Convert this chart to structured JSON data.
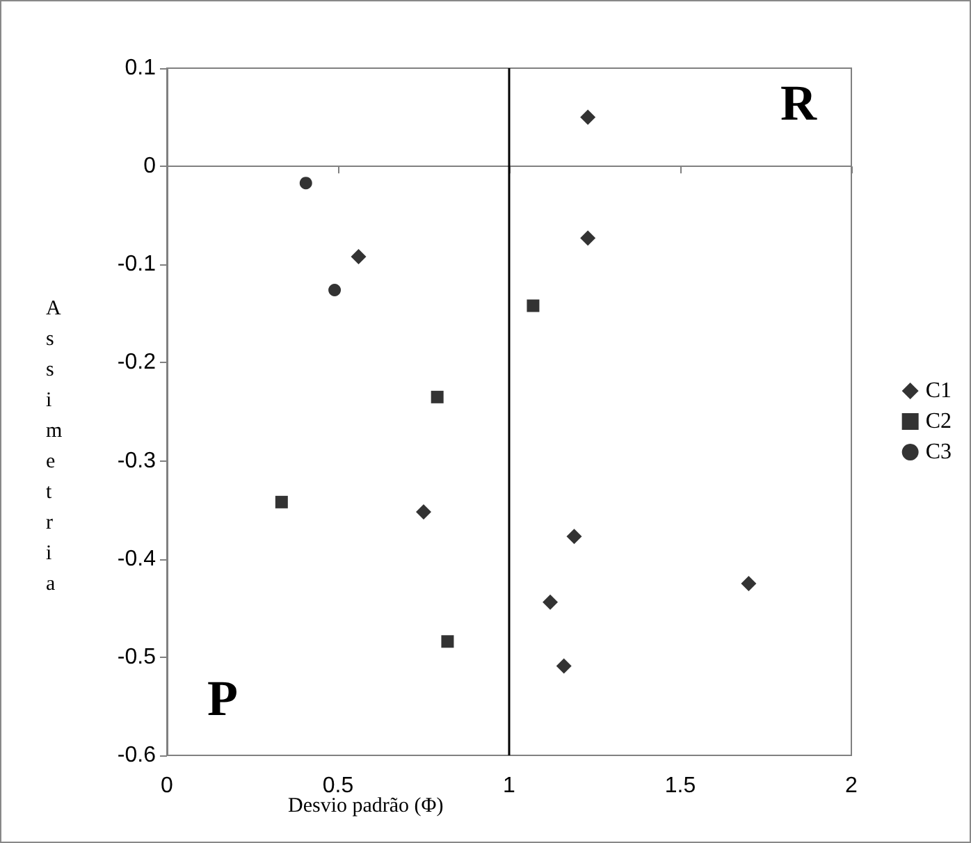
{
  "chart_data": {
    "type": "scatter",
    "xlabel": "Desvio padrão (Φ)",
    "ylabel": "Assimetria",
    "annotations": [
      "R",
      "P"
    ],
    "xlim": [
      0,
      2
    ],
    "xticks": [
      0,
      0.5,
      1,
      1.5,
      2
    ],
    "ylim": [
      -0.6,
      0.1
    ],
    "yticks": [
      -0.6,
      -0.5,
      -0.4,
      -0.3,
      -0.2,
      -0.1,
      0,
      0.1
    ],
    "grid": false,
    "legend": "right",
    "ref_lines": [
      {
        "axis": "x",
        "value": 1,
        "color": "#000000"
      }
    ],
    "series": [
      {
        "name": "C1",
        "color": "#000000",
        "marker": "diamond",
        "x": [
          1.23,
          1.23,
          0.56,
          0.75,
          1.19,
          1.7,
          1.12,
          1.16
        ],
        "values": [
          0.05,
          -0.073,
          -0.092,
          -0.352,
          -0.377,
          -0.425,
          -0.444,
          -0.509
        ]
      },
      {
        "name": "C2",
        "color": "#000000",
        "marker": "square",
        "x": [
          1.07,
          0.79,
          0.335,
          0.82
        ],
        "values": [
          -0.142,
          -0.235,
          -0.342,
          -0.484
        ]
      },
      {
        "name": "C3",
        "color": "#000000",
        "marker": "circle",
        "x": [
          0.406,
          0.49
        ],
        "values": [
          -0.017,
          -0.126
        ]
      }
    ]
  }
}
